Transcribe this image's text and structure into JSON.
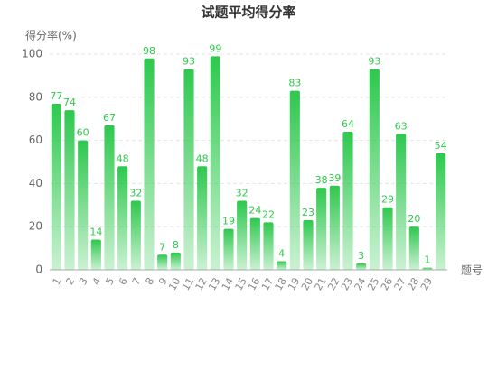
{
  "chart_data": {
    "type": "bar",
    "title": "试题平均得分率",
    "y_label": "得分率(%)",
    "x_label": "题号",
    "categories": [
      "1",
      "2",
      "3",
      "4",
      "5",
      "6",
      "7",
      "8",
      "9",
      "10",
      "11",
      "12",
      "13",
      "14",
      "15",
      "16",
      "17",
      "18",
      "19",
      "20",
      "21",
      "22",
      "23",
      "24",
      "25",
      "26",
      "27",
      "28",
      "29",
      null
    ],
    "values": [
      77,
      74,
      60,
      14,
      67,
      48,
      32,
      98,
      7,
      8,
      93,
      48,
      99,
      19,
      32,
      24,
      22,
      4,
      83,
      23,
      38,
      39,
      64,
      3,
      93,
      29,
      63,
      20,
      1,
      54
    ],
    "color": "#2ec84e",
    "ylim": [
      0,
      100
    ],
    "yticks": [
      0,
      20,
      40,
      60,
      80,
      100
    ],
    "grid": true
  }
}
